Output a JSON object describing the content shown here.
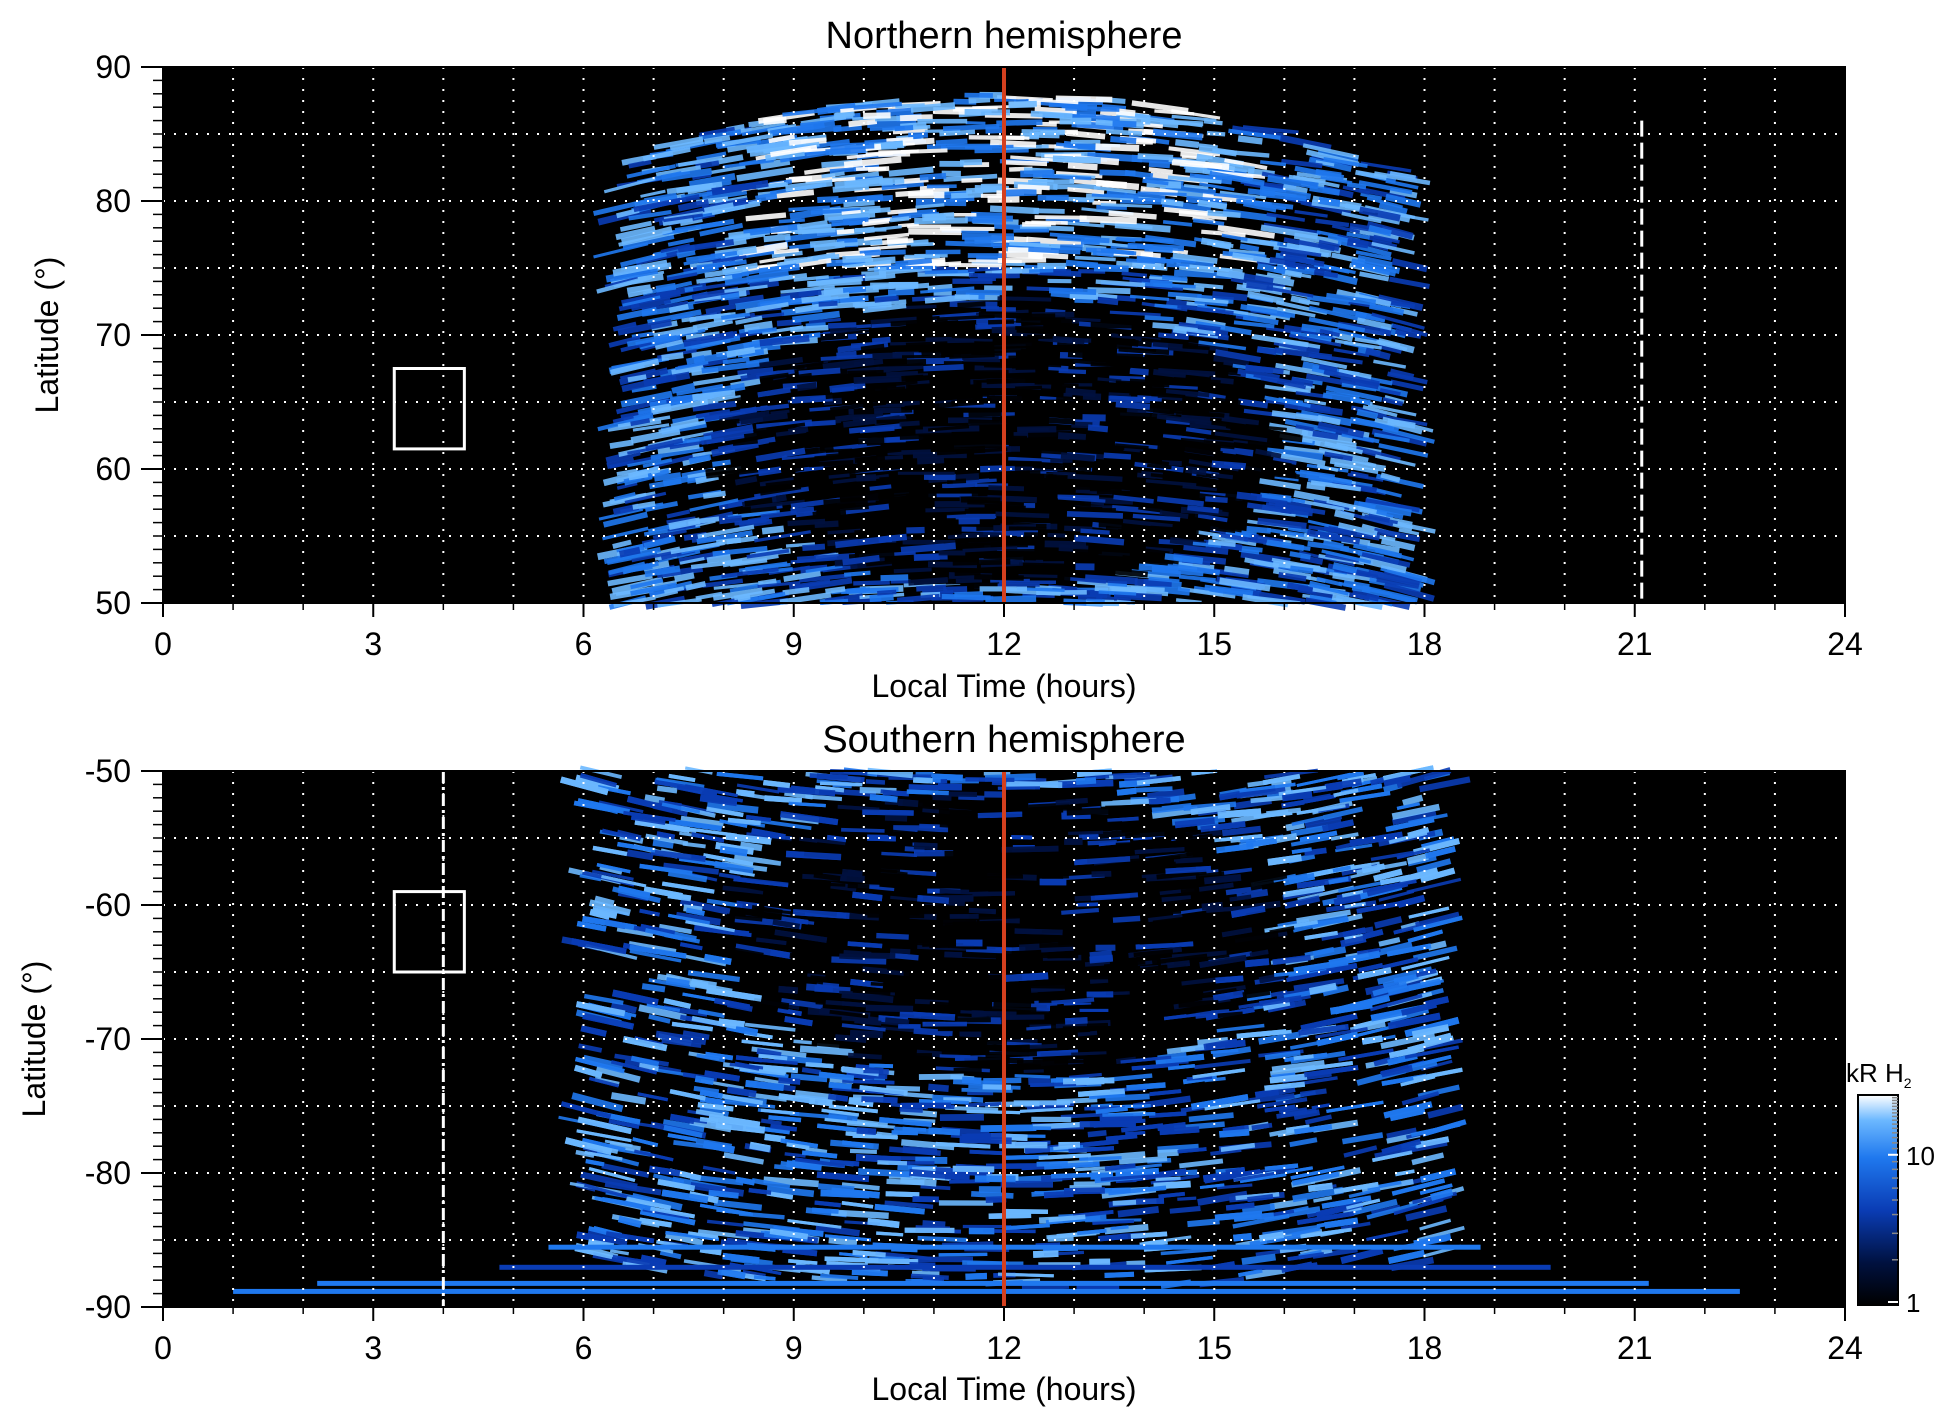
{
  "figure": {
    "colorbar": {
      "unit_label": "kR H",
      "unit_subscript": "2",
      "tick_labels": [
        "10",
        "1"
      ],
      "range": [
        1,
        25
      ],
      "scale": "log",
      "colors": [
        "#000000",
        "#00113f",
        "#0a3cb4",
        "#1f78ee",
        "#6cb8ff",
        "#ffffff"
      ]
    },
    "marker_colors": {
      "noon_line": "#d4401f",
      "box": "#ffffff",
      "grid": "#ffffff",
      "background": "#000000"
    }
  },
  "chart_data": [
    {
      "type": "heatmap",
      "title": "Northern hemisphere",
      "xlabel": "Local Time (hours)",
      "ylabel": "Latitude (°)",
      "xlim": [
        0,
        24
      ],
      "ylim": [
        50,
        90
      ],
      "xticks": [
        "0",
        "3",
        "6",
        "9",
        "12",
        "15",
        "18",
        "21",
        "24"
      ],
      "yticks": [
        "50",
        "60",
        "70",
        "80",
        "90"
      ],
      "grid": true,
      "emission_extent_lt": [
        6.5,
        17.8
      ],
      "noon_line_lt": 12,
      "dashed_line_lt": 21.1,
      "box": {
        "lt": [
          3.3,
          4.3
        ],
        "lat": [
          61.5,
          67.5
        ]
      }
    },
    {
      "type": "heatmap",
      "title": "Southern hemisphere",
      "xlabel": "Local Time (hours)",
      "ylabel": "Latitude (°)",
      "xlim": [
        0,
        24
      ],
      "ylim": [
        -90,
        -50
      ],
      "xticks": [
        "0",
        "3",
        "6",
        "9",
        "12",
        "15",
        "18",
        "21",
        "24"
      ],
      "yticks": [
        "-50",
        "-60",
        "-70",
        "-80",
        "-90"
      ],
      "grid": true,
      "emission_extent_lt": [
        6.0,
        18.3
      ],
      "noon_line_lt": 12,
      "dashed_line_lt": 4.0,
      "box": {
        "lt": [
          3.3,
          4.3
        ],
        "lat": [
          -65,
          -59
        ]
      }
    }
  ]
}
